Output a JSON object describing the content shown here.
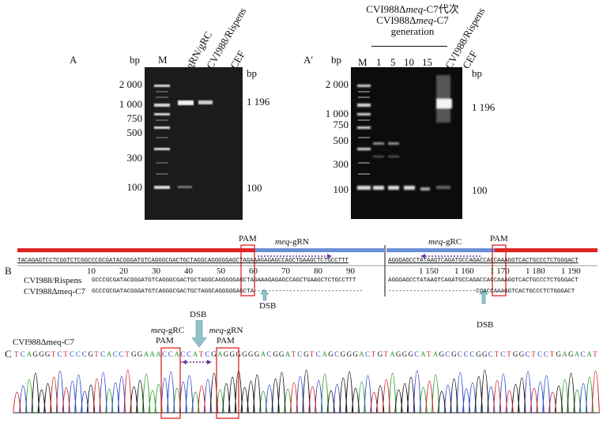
{
  "panelA": {
    "label": "A",
    "bp_label": "bp",
    "bp_right_label": "bp",
    "marker_label": "M",
    "lanes": [
      "gRN/gRC",
      "CVI988/Rispens",
      "CEF"
    ],
    "ladder_labels": [
      "2 000",
      "1 000",
      "750",
      "500",
      "300",
      "100"
    ],
    "size_labels": [
      "1 196",
      "100"
    ]
  },
  "panelA2": {
    "label": "A′",
    "bp_label": "bp",
    "bp_right_label": "bp",
    "marker_label": "M",
    "header_cn_prefix": "CVI988Δ",
    "header_cn_italic": "meq",
    "header_cn_suffix": "-C7代次",
    "header_en_prefix": "CVI988Δ",
    "header_en_italic": "meq",
    "header_en_suffix": "-C7",
    "header_en_line2": "generation",
    "generations": [
      "1",
      "5",
      "10",
      "15"
    ],
    "extra_lanes": [
      "CVI988/Rispens",
      "CEF"
    ],
    "ladder_labels": [
      "2 000",
      "1 000",
      "750",
      "500",
      "300",
      "100"
    ],
    "size_labels": [
      "1 196",
      "100"
    ]
  },
  "panelB": {
    "label": "B",
    "pam_left": "PAM",
    "pam_right": "PAM",
    "grn_italic": "meq",
    "grn_suffix": "-gRN",
    "grc_italic": "meq",
    "grc_suffix": "-gRC",
    "ref_seq_left": "TACAGAGTCCTCGGTCTCGGCCCGCGATACGGGATGTCAGGGCGACTGCTAGGCAGGGGGAGCTAGAAAGAGAGCCAGCTGAAGCTCTGCCTTT",
    "ref_seq_right": "AGGGAGCCTATAAGTCAGATGCCAGACCACCAAAGGTCACTGCCCTCTGGGACT",
    "ticks_left": [
      "10",
      "20",
      "30",
      "40",
      "50",
      "60",
      "70",
      "80",
      "90"
    ],
    "ticks_right": [
      "1 150",
      "1 160",
      "1 170",
      "1 180",
      "1 190"
    ],
    "row1_name": "CVI988/Rispens",
    "row1_seq_left": "GCCCGCGATACGGGATGTCAGGGCGACTGCTAGGCAGGGGGAGCTAGAAAGAGAGCCAGCTGAAGCTCTGCCTTT",
    "row1_seq_right": "AGGGAGCCTATAAGTCAGATGCCAGACCACCAAAGGTCACTGCCCTCTGGGACT",
    "row2_name": "CVI988Δmeq-C7",
    "row2_seq_left": "GCCCGCGATACGGGATGTCAGGGCGACTGCTAGGCAGGGGGAGCTA-------------------------------",
    "row2_seq_right": "-------------------------CCACCAAAGGTCACTGCCCTCTGGGACT",
    "dsb_left": "DSB",
    "dsb_right": "DSB"
  },
  "panelC": {
    "label": "C",
    "sample_name": "CVI988Δmeq-C7",
    "dsb": "DSB",
    "grc_italic": "meq",
    "grc_suffix": "-gRC",
    "grc_pam": "PAM",
    "grn_italic": "meq",
    "grn_suffix": "-gRN",
    "grn_pam": "PAM",
    "sequence": "TCAGGGTCTCCCGTCACCTGGAAACCACCATCGAGGGGGGACGGATCGTCAGCGGGACTGTAGGGCATAGCGCCCGGCTCTGGCTCCTGAGACAT"
  },
  "colors": {
    "red_bar": "#e02424",
    "blue_bar": "#6b8fd6",
    "arrow_teal": "#8fc3c8",
    "A": "#2a9d2a",
    "C": "#2b47c8",
    "G": "#111111",
    "T": "#d42020"
  }
}
